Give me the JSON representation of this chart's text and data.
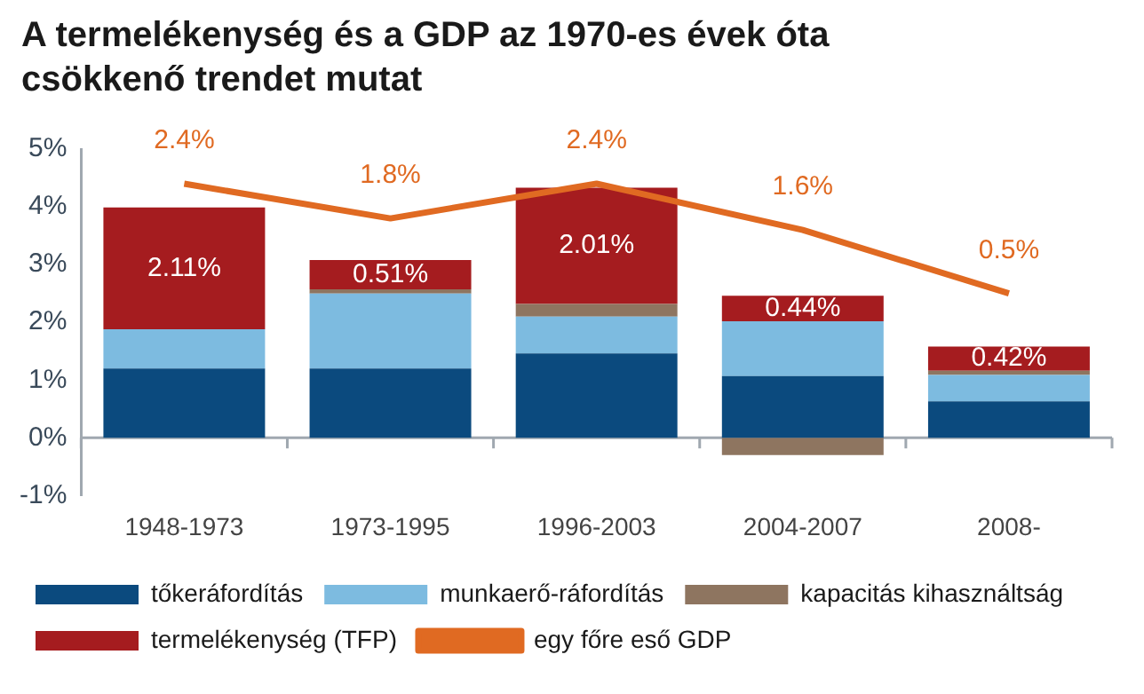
{
  "chart_data": {
    "type": "bar",
    "title": "A termelékenység és a GDP az 1970-es évek óta csökkenő trendet mutat",
    "categories": [
      "1948-1973",
      "1973-1995",
      "1996-2003",
      "2004-2007",
      "2008-"
    ],
    "stacked": true,
    "series": [
      {
        "name": "tőkeráfordítás",
        "color": "#0b4a7e",
        "values": [
          1.2,
          1.2,
          1.46,
          1.07,
          0.63
        ]
      },
      {
        "name": "munkaerő-ráfordítás",
        "color": "#7dbbe0",
        "values": [
          0.68,
          1.3,
          0.64,
          0.95,
          0.46
        ]
      },
      {
        "name": "kapacitás kihasználtság",
        "color": "#8e7560",
        "values": [
          0,
          0.07,
          0.22,
          -0.3,
          0.07
        ]
      },
      {
        "name": "termelékenység (TFP)",
        "color": "#a51c1f",
        "values": [
          2.11,
          0.51,
          2.01,
          0.44,
          0.42
        ],
        "value_labels": [
          "2.11%",
          "0.51%",
          "2.01%",
          "0.44%",
          "0.42%"
        ]
      },
      {
        "name": "egy főre eső GDP",
        "type": "line",
        "axis": "y2",
        "color": "#e06a22",
        "values": [
          2.4,
          1.8,
          2.4,
          1.6,
          0.5
        ],
        "value_labels": [
          "2.4%",
          "1.8%",
          "2.4%",
          "1.6%",
          "0.5%"
        ]
      }
    ],
    "ylim": [
      -1,
      5
    ],
    "yticks": [
      {
        "value": -1,
        "label": "-1%"
      },
      {
        "value": 0,
        "label": "0%"
      },
      {
        "value": 1,
        "label": "1%"
      },
      {
        "value": 2,
        "label": "2%"
      },
      {
        "value": 3,
        "label": "3%"
      },
      {
        "value": 4,
        "label": "4%"
      },
      {
        "value": 5,
        "label": "5%"
      }
    ],
    "y2lim": [
      -3,
      3
    ],
    "ref_lines": [
      {
        "axis": "y",
        "value": 0,
        "color": "#a0a8b0"
      }
    ],
    "grid": false,
    "legend": "bottom",
    "marker": "none"
  }
}
